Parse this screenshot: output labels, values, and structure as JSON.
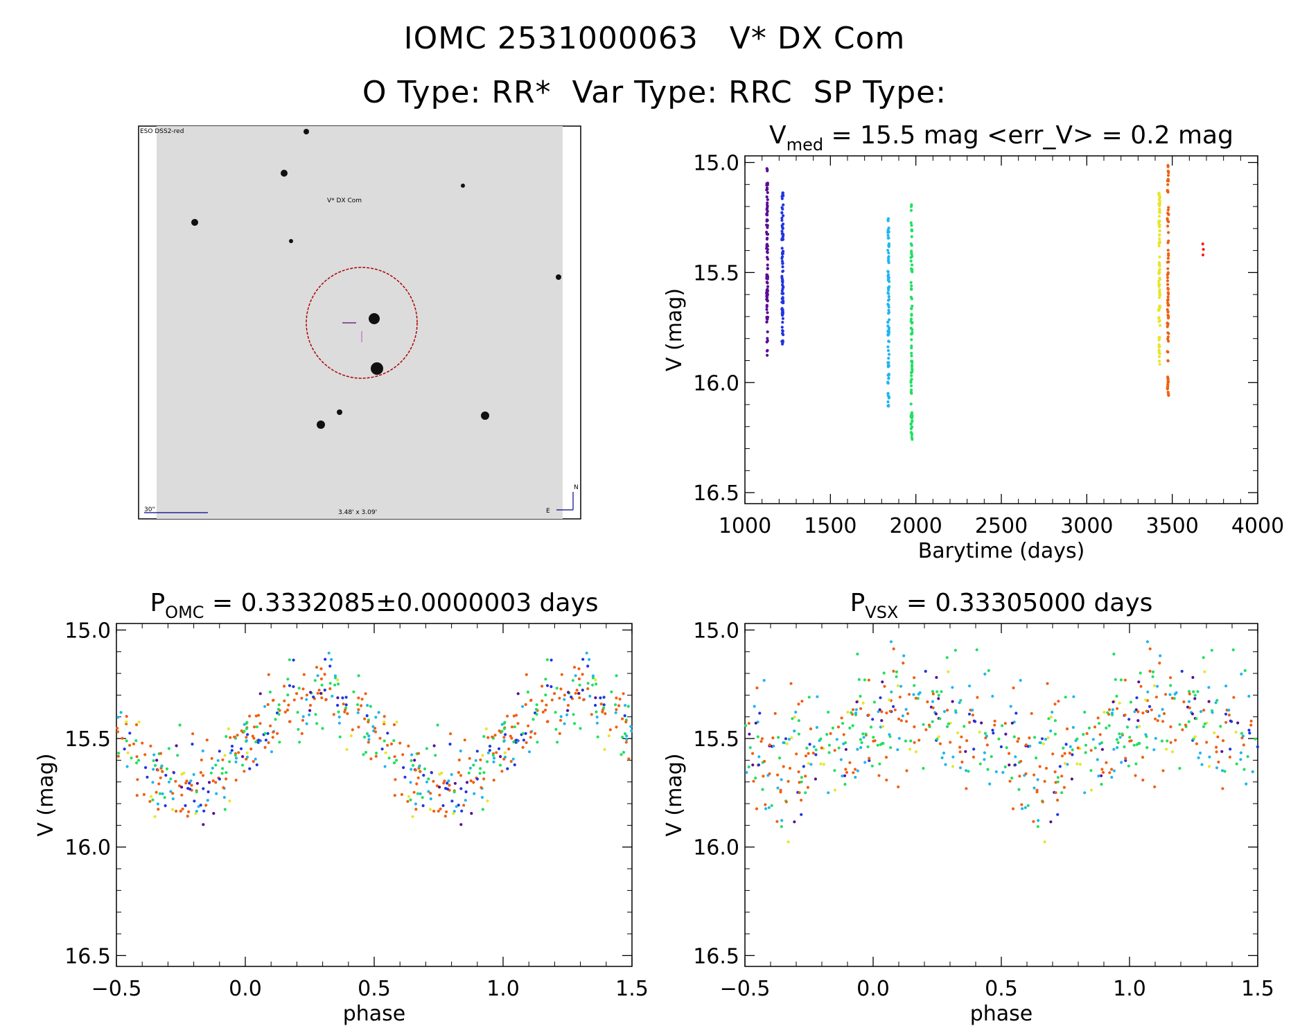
{
  "header": {
    "line1": "IOMC 2531000063   V* DX Com",
    "line2": "O Type: RR*  Var Type: RRC  SP Type:"
  },
  "finder": {
    "corner_label": "ESO DSS2-red",
    "target_label": "V* DX Com",
    "scale_label": "30\"",
    "size_label": "3.48' x 3.09'",
    "north_label": "N",
    "east_label": "E"
  },
  "chart_data": [
    {
      "type": "scatter",
      "title_main": "V",
      "title_sub": "med",
      "title_rest": " = 15.5 mag <err_V> = 0.2 mag",
      "xlabel": "Barytime (days)",
      "ylabel": "V (mag)",
      "xlim": [
        1000,
        4000
      ],
      "ylim": [
        16.55,
        14.97
      ],
      "y_inverted": true,
      "xticks": [
        1000,
        1500,
        2000,
        2500,
        3000,
        3500,
        4000
      ],
      "xtick_labels": [
        "1000",
        "1500",
        "2000",
        "2500",
        "3000",
        "3500",
        "4000"
      ],
      "yticks": [
        15.0,
        15.5,
        16.0,
        16.5
      ],
      "ytick_labels": [
        "15.0",
        "15.5",
        "16.0",
        "16.5"
      ],
      "series": [
        {
          "color": "#5a0c96",
          "x_center": 1130,
          "y_min": 15.02,
          "y_max": 15.88
        },
        {
          "color": "#2035e0",
          "x_center": 1220,
          "y_min": 15.12,
          "y_max": 15.83
        },
        {
          "color": "#20b6ee",
          "x_center": 1840,
          "y_min": 15.25,
          "y_max": 16.14
        },
        {
          "color": "#20e060",
          "x_center": 1975,
          "y_min": 15.19,
          "y_max": 16.27
        },
        {
          "color": "#e6e62a",
          "x_center": 3425,
          "y_min": 15.13,
          "y_max": 15.92
        },
        {
          "color": "#f06010",
          "x_center": 3475,
          "y_min": 15.01,
          "y_max": 16.09
        },
        {
          "color": "#ff1a1a",
          "x_center": 3680,
          "y_min": 15.37,
          "y_max": 15.42
        }
      ]
    },
    {
      "type": "scatter",
      "title_main": "P",
      "title_sub": "OMC",
      "title_rest": " = 0.3332085±0.0000003 days",
      "xlabel": "phase",
      "ylabel": "V (mag)",
      "xlim": [
        -0.5,
        1.5
      ],
      "ylim": [
        16.55,
        14.97
      ],
      "y_inverted": true,
      "xticks": [
        -0.5,
        0.0,
        0.5,
        1.0,
        1.5
      ],
      "xtick_labels": [
        "−0.5",
        "0.0",
        "0.5",
        "1.0",
        "1.5"
      ],
      "yticks": [
        15.0,
        15.5,
        16.0,
        16.5
      ],
      "ytick_labels": [
        "15.0",
        "15.5",
        "16.0",
        "16.5"
      ],
      "period_days": 0.3332085,
      "mean_mag": 15.5,
      "amplitude_mag": 0.45,
      "max_light_phase": 0.28
    },
    {
      "type": "scatter",
      "title_main": "P",
      "title_sub": "VSX",
      "title_rest": " = 0.33305000 days",
      "xlabel": "phase",
      "ylabel": "V (mag)",
      "xlim": [
        -0.5,
        1.5
      ],
      "ylim": [
        16.55,
        14.97
      ],
      "y_inverted": true,
      "xticks": [
        -0.5,
        0.0,
        0.5,
        1.0,
        1.5
      ],
      "xtick_labels": [
        "−0.5",
        "0.0",
        "0.5",
        "1.0",
        "1.5"
      ],
      "yticks": [
        15.0,
        15.5,
        16.0,
        16.5
      ],
      "ytick_labels": [
        "15.0",
        "15.5",
        "16.0",
        "16.5"
      ],
      "period_days": 0.33305,
      "mean_mag": 15.5,
      "amplitude_mag": 0.3
    }
  ]
}
